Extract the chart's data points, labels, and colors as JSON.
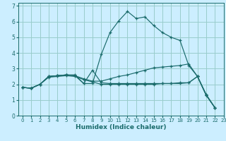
{
  "xlabel": "Humidex (Indice chaleur)",
  "bg_color": "#cceeff",
  "line_color": "#1a6b6b",
  "grid_color": "#99cccc",
  "xlim": [
    -0.5,
    23
  ],
  "ylim": [
    0,
    7.2
  ],
  "xticks": [
    0,
    1,
    2,
    3,
    4,
    5,
    6,
    7,
    8,
    9,
    10,
    11,
    12,
    13,
    14,
    15,
    16,
    17,
    18,
    19,
    20,
    21,
    22,
    23
  ],
  "yticks": [
    0,
    1,
    2,
    3,
    4,
    5,
    6,
    7
  ],
  "lines": [
    {
      "x": [
        0,
        1,
        2,
        3,
        4,
        5,
        6,
        7,
        8,
        9,
        10,
        11,
        12,
        13,
        14,
        15,
        16,
        17,
        18,
        19,
        20,
        21,
        22
      ],
      "y": [
        1.8,
        1.75,
        2.0,
        2.5,
        2.55,
        2.6,
        2.6,
        2.05,
        2.05,
        3.9,
        5.3,
        6.05,
        6.65,
        6.2,
        6.3,
        5.75,
        5.3,
        5.0,
        4.8,
        3.2,
        2.5,
        1.35,
        0.5
      ]
    },
    {
      "x": [
        0,
        1,
        2,
        3,
        4,
        5,
        6,
        7,
        8,
        9,
        10,
        11,
        12,
        13,
        14,
        15,
        16,
        17,
        18,
        19,
        20,
        21,
        22
      ],
      "y": [
        1.8,
        1.75,
        2.0,
        2.45,
        2.5,
        2.55,
        2.5,
        2.3,
        2.15,
        2.0,
        2.0,
        2.0,
        2.0,
        2.0,
        2.0,
        2.0,
        2.05,
        2.05,
        2.1,
        2.1,
        2.5,
        1.3,
        0.5
      ]
    },
    {
      "x": [
        0,
        1,
        2,
        3,
        4,
        5,
        6,
        7,
        8,
        9,
        10,
        11,
        12,
        13,
        14,
        15,
        16,
        17,
        18,
        19,
        20,
        21,
        22
      ],
      "y": [
        1.8,
        1.75,
        2.0,
        2.5,
        2.55,
        2.6,
        2.55,
        2.35,
        2.2,
        2.2,
        2.35,
        2.5,
        2.6,
        2.75,
        2.9,
        3.05,
        3.1,
        3.15,
        3.2,
        3.3,
        2.5,
        1.3,
        0.5
      ]
    },
    {
      "x": [
        0,
        1,
        2,
        3,
        4,
        5,
        6,
        7,
        8,
        9,
        10,
        11,
        12,
        13,
        14,
        15,
        16,
        17,
        18,
        19,
        20,
        21,
        22
      ],
      "y": [
        1.8,
        1.75,
        2.0,
        2.5,
        2.55,
        2.6,
        2.55,
        2.05,
        2.9,
        2.1,
        2.05,
        2.05,
        2.05,
        2.05,
        2.05,
        2.05,
        2.05,
        2.05,
        2.05,
        2.1,
        2.5,
        1.3,
        0.5
      ]
    }
  ]
}
